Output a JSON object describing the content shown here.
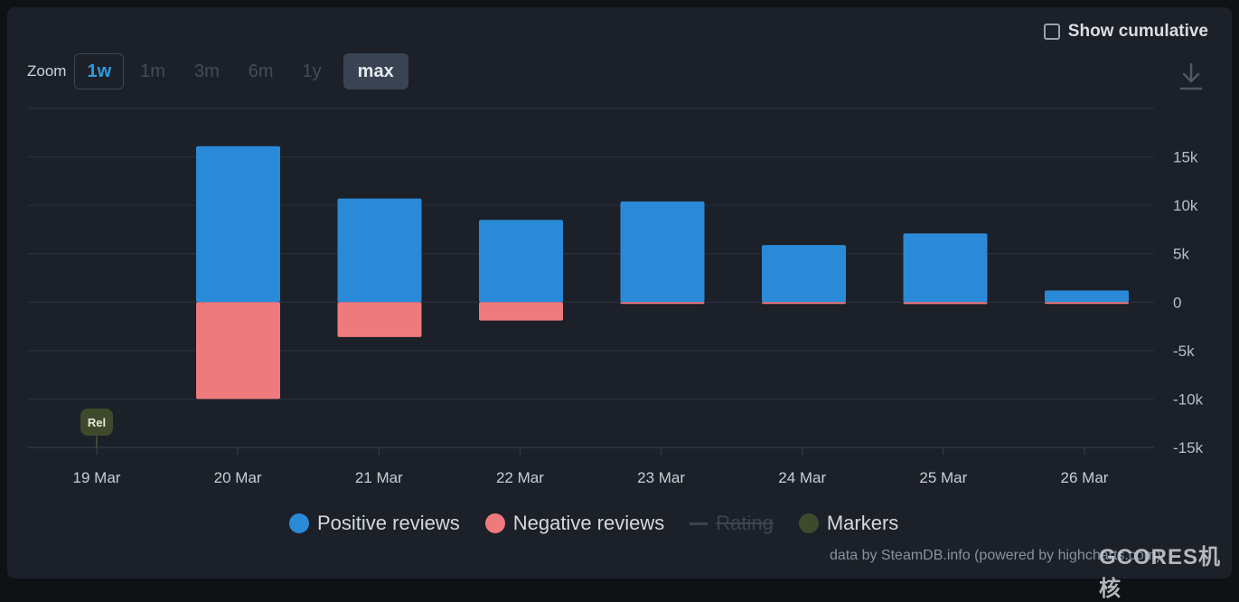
{
  "controls": {
    "cumulative_label": "Show cumulative",
    "zoom_label": "Zoom",
    "zoom_options": [
      "1w",
      "1m",
      "3m",
      "6m",
      "1y",
      "max"
    ],
    "zoom_selected": "1w",
    "zoom_active": "max"
  },
  "legend": [
    {
      "label": "Positive reviews",
      "color": "#2b8ad8"
    },
    {
      "label": "Negative reviews",
      "color": "#ef7a7d"
    },
    {
      "label": "Rating",
      "color": "#3b4350"
    },
    {
      "label": "Markers",
      "color": "#3f4a2d"
    }
  ],
  "marker": {
    "label": "Rel",
    "date": "19 Mar"
  },
  "credits": "data by SteamDB.info (powered by highcharts.com)",
  "watermark": "GCORES机核",
  "chart_data": {
    "type": "bar",
    "categories": [
      "19 Mar",
      "20 Mar",
      "21 Mar",
      "22 Mar",
      "23 Mar",
      "24 Mar",
      "25 Mar",
      "26 Mar"
    ],
    "series": [
      {
        "name": "Positive reviews",
        "color": "#2b8ad8",
        "values": [
          0,
          16100,
          10700,
          8500,
          10400,
          5900,
          7100,
          1200
        ]
      },
      {
        "name": "Negative reviews",
        "color": "#ef7a7d",
        "values": [
          0,
          -10000,
          -3600,
          -1900,
          -100,
          -100,
          -200,
          -50
        ]
      }
    ],
    "ylim": [
      -15000,
      20000
    ],
    "yticks": [
      15000,
      10000,
      5000,
      0,
      -5000,
      -10000,
      -15000
    ],
    "ytick_labels": [
      "15k",
      "10k",
      "5k",
      "0",
      "-5k",
      "-10k",
      "-15k"
    ],
    "grid": true,
    "legend_position": "bottom"
  }
}
